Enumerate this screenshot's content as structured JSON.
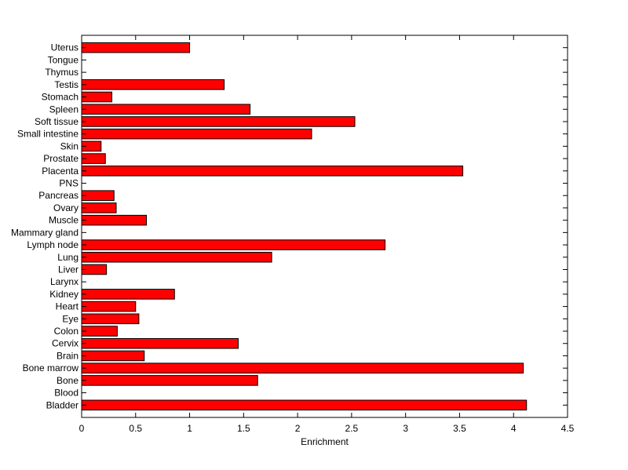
{
  "chart_data": {
    "type": "bar",
    "orientation": "horizontal",
    "categories": [
      "Bladder",
      "Blood",
      "Bone",
      "Bone marrow",
      "Brain",
      "Cervix",
      "Colon",
      "Eye",
      "Heart",
      "Kidney",
      "Larynx",
      "Liver",
      "Lung",
      "Lymph node",
      "Mammary gland",
      "Muscle",
      "Ovary",
      "Pancreas",
      "PNS",
      "Placenta",
      "Prostate",
      "Skin",
      "Small intestine",
      "Soft tissue",
      "Spleen",
      "Stomach",
      "Testis",
      "Thymus",
      "Tongue",
      "Uterus"
    ],
    "values": [
      4.12,
      0,
      1.63,
      4.09,
      0.58,
      1.45,
      0.33,
      0.53,
      0.5,
      0.86,
      0,
      0.23,
      1.76,
      2.81,
      0,
      0.6,
      0.32,
      0.3,
      0,
      3.53,
      0.22,
      0.18,
      2.13,
      2.53,
      1.56,
      0.28,
      1.32,
      0,
      0,
      1.0
    ],
    "xlabel": "Enrichment",
    "ylabel": "",
    "title": "",
    "xlim": [
      0,
      4.5
    ],
    "xticks": [
      "0",
      "0.5",
      "1",
      "1.5",
      "2",
      "2.5",
      "3",
      "3.5",
      "4",
      "4.5"
    ],
    "grid": false,
    "bar_color": "#ff0000",
    "bar_edge_color": "#000000"
  }
}
